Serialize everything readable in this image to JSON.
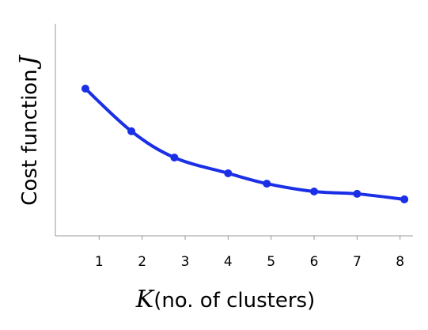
{
  "chart_data": {
    "type": "line",
    "y_label": "Cost function",
    "y_label_symbol": "J",
    "x_label_symbol": "K",
    "x_label": "(no. of clusters)",
    "x": [
      0.68,
      1.75,
      2.75,
      4,
      4.9,
      6,
      7,
      8.1
    ],
    "series": [
      {
        "color": "#1a2fe6",
        "values": [
          6.94,
          4.93,
          3.69,
          2.95,
          2.46,
          2.09,
          1.98,
          1.72
        ]
      }
    ],
    "xlim": [
      0,
      8.3
    ],
    "xticks": [
      1,
      2,
      3,
      4,
      5,
      6,
      7,
      8
    ],
    "ylim": [
      0,
      10
    ]
  }
}
